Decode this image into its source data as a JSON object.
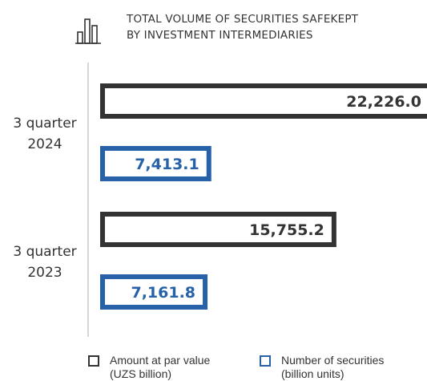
{
  "header": {
    "title_line1": "TOTAL VOLUME OF SECURITIES SAFEKEPT",
    "title_line2": "BY INVESTMENT INTERMEDIARIES",
    "icon": "bar-chart-icon"
  },
  "colors": {
    "par_value": "#333333",
    "securities": "#2762a9",
    "axis": "#c8c8c8",
    "text": "#333333"
  },
  "legend": {
    "par_value_line1": "Amount at par value",
    "par_value_line2": "(UZS billion)",
    "securities_line1": "Number of securities",
    "securities_line2": "(billion units)"
  },
  "chart_data": {
    "type": "bar",
    "orientation": "horizontal",
    "title": "TOTAL VOLUME OF SECURITIES SAFEKEPT BY INVESTMENT INTERMEDIARIES",
    "categories": [
      {
        "line1": "3 quarter",
        "line2": "2024"
      },
      {
        "line1": "3 quarter",
        "line2": "2023"
      }
    ],
    "series": [
      {
        "name": "Amount at par value (UZS billion)",
        "values": [
          22226.0,
          15755.2
        ],
        "labels": [
          "22,226.0",
          "15,755.2"
        ]
      },
      {
        "name": "Number of securities (billion units)",
        "values": [
          7413.1,
          7161.8
        ],
        "labels": [
          "7,413.1",
          "7,161.8"
        ]
      }
    ],
    "grid": false,
    "legend_position": "bottom"
  }
}
